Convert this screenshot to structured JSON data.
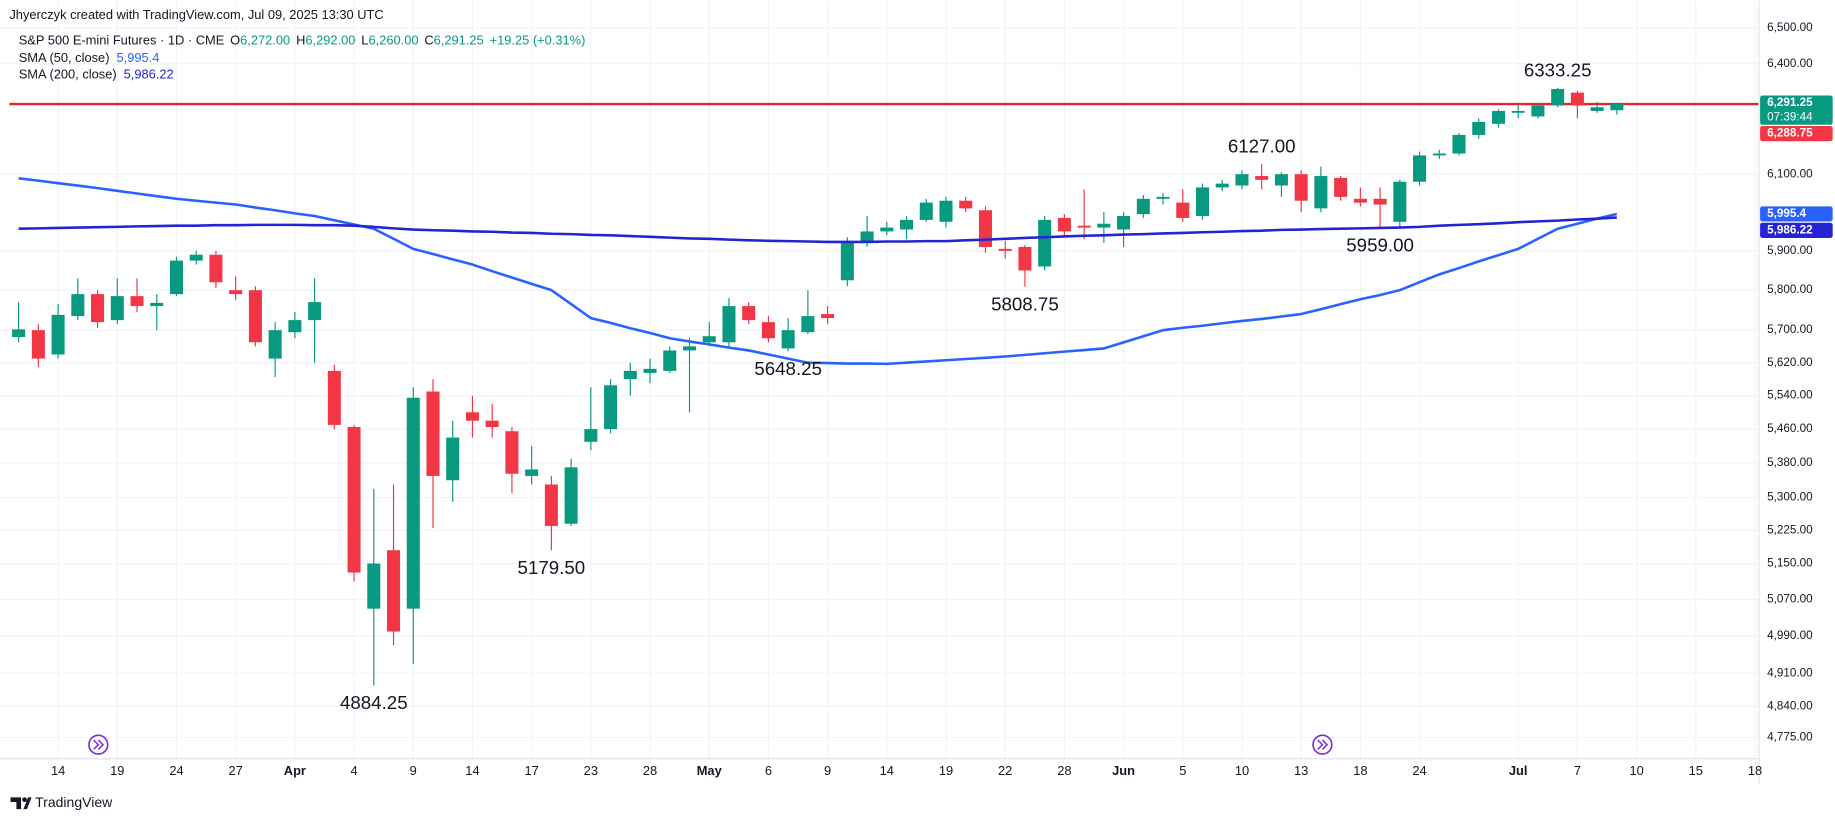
{
  "header": {
    "credit": "Jhyerczyk created with TradingView.com, Jul 09, 2025 13:30 UTC",
    "symbol": "S&P 500 E-mini Futures · 1D · CME",
    "ohlc": [
      {
        "key": "O",
        "value": "6,272.00"
      },
      {
        "key": "H",
        "value": "6,292.00"
      },
      {
        "key": "L",
        "value": "6,260.00"
      },
      {
        "key": "C",
        "value": "6,291.25"
      }
    ],
    "change": "+19.25 (+0.31%)"
  },
  "footer": {
    "brand": "TradingView"
  },
  "chart_data": {
    "type": "candlestick",
    "log_scale": true,
    "grid": true,
    "up_color": "#089981",
    "down_color": "#f23645",
    "xlim": [
      -0.47,
      88.2
    ],
    "ylim": [
      4731,
      6532
    ],
    "yticks": [
      {
        "value": 6500,
        "label": "6,500.00"
      },
      {
        "value": 6400,
        "label": "6,400.00"
      },
      {
        "value": 6100,
        "label": "6,100.00"
      },
      {
        "value": 5900,
        "label": "5,900.00"
      },
      {
        "value": 5800,
        "label": "5,800.00"
      },
      {
        "value": 5700,
        "label": "5,700.00"
      },
      {
        "value": 5620,
        "label": "5,620.00"
      },
      {
        "value": 5540,
        "label": "5,540.00"
      },
      {
        "value": 5460,
        "label": "5,460.00"
      },
      {
        "value": 5380,
        "label": "5,380.00"
      },
      {
        "value": 5300,
        "label": "5,300.00"
      },
      {
        "value": 5225,
        "label": "5,225.00"
      },
      {
        "value": 5150,
        "label": "5,150.00"
      },
      {
        "value": 5070,
        "label": "5,070.00"
      },
      {
        "value": 4990,
        "label": "4,990.00"
      },
      {
        "value": 4910,
        "label": "4,910.00"
      },
      {
        "value": 4840,
        "label": "4,840.00"
      },
      {
        "value": 4775,
        "label": "4,775.00"
      }
    ],
    "xticks": [
      {
        "value": 2,
        "label": "14"
      },
      {
        "value": 5,
        "label": "19"
      },
      {
        "value": 8,
        "label": "24"
      },
      {
        "value": 11,
        "label": "27"
      },
      {
        "value": 14,
        "label": "Apr"
      },
      {
        "value": 17,
        "label": "4"
      },
      {
        "value": 20,
        "label": "9"
      },
      {
        "value": 23,
        "label": "14"
      },
      {
        "value": 26,
        "label": "17"
      },
      {
        "value": 29,
        "label": "23"
      },
      {
        "value": 32,
        "label": "28"
      },
      {
        "value": 35,
        "label": "May"
      },
      {
        "value": 38,
        "label": "6"
      },
      {
        "value": 41,
        "label": "9"
      },
      {
        "value": 44,
        "label": "14"
      },
      {
        "value": 47,
        "label": "19"
      },
      {
        "value": 50,
        "label": "22"
      },
      {
        "value": 53,
        "label": "28"
      },
      {
        "value": 56,
        "label": "Jun"
      },
      {
        "value": 59,
        "label": "5"
      },
      {
        "value": 62,
        "label": "10"
      },
      {
        "value": 65,
        "label": "13"
      },
      {
        "value": 68,
        "label": "18"
      },
      {
        "value": 71,
        "label": "24"
      },
      {
        "value": 76,
        "label": "Jul"
      },
      {
        "value": 79,
        "label": "7"
      },
      {
        "value": 82,
        "label": "10"
      },
      {
        "value": 85,
        "label": "15"
      },
      {
        "value": 88,
        "label": "18"
      }
    ],
    "open": [
      5683,
      5700,
      5640,
      5735,
      5790,
      5725,
      5785,
      5760,
      5790,
      5875,
      5890,
      5800,
      5800,
      5630,
      5695,
      5725,
      5600,
      5465,
      5050,
      5180,
      5050,
      5550,
      5340,
      5500,
      5480,
      5455,
      5350,
      5330,
      5240,
      5430,
      5460,
      5580,
      5595,
      5600,
      5650,
      5670,
      5670,
      5760,
      5720,
      5655,
      5695,
      5740,
      5825,
      5920,
      5950,
      5955,
      5980,
      5975,
      6030,
      6005,
      5905,
      5910,
      5860,
      5985,
      5965,
      5960,
      5955,
      5995,
      6035,
      6025,
      5990,
      6065,
      6070,
      6095,
      6070,
      6100,
      6010,
      6090,
      6035,
      6035,
      5975,
      6080,
      6150,
      6155,
      6205,
      6235,
      6265,
      6255,
      6285,
      6320,
      6270,
      6272
    ],
    "high": [
      5770,
      5715,
      5765,
      5830,
      5800,
      5830,
      5830,
      5790,
      5885,
      5900,
      5900,
      5835,
      5810,
      5720,
      5745,
      5830,
      5615,
      5470,
      5320,
      5330,
      5560,
      5580,
      5480,
      5540,
      5520,
      5465,
      5420,
      5350,
      5390,
      5560,
      5580,
      5620,
      5630,
      5660,
      5680,
      5720,
      5780,
      5770,
      5735,
      5730,
      5800,
      5760,
      5935,
      5990,
      5975,
      5990,
      6035,
      6040,
      6040,
      6015,
      5925,
      5915,
      5990,
      5995,
      6060,
      6000,
      6000,
      6045,
      6050,
      6060,
      6075,
      6085,
      6110,
      6127,
      6105,
      6110,
      6120,
      6095,
      6065,
      6065,
      6085,
      6160,
      6165,
      6210,
      6250,
      6275,
      6285,
      6290,
      6333.25,
      6325,
      6295,
      6292
    ],
    "low": [
      5670,
      5610,
      5630,
      5725,
      5705,
      5715,
      5745,
      5700,
      5785,
      5865,
      5805,
      5775,
      5660,
      5585,
      5680,
      5620,
      5460,
      5110,
      4884.25,
      4970,
      4930,
      5230,
      5290,
      5440,
      5440,
      5310,
      5330,
      5179.5,
      5235,
      5410,
      5450,
      5540,
      5570,
      5595,
      5500,
      5660,
      5660,
      5715,
      5670,
      5648.25,
      5690,
      5715,
      5810,
      5910,
      5940,
      5930,
      5975,
      5960,
      6000,
      5895,
      5880,
      5808.75,
      5850,
      5940,
      5930,
      5920,
      5910,
      5985,
      6020,
      5975,
      5980,
      6055,
      6060,
      6060,
      6040,
      6000,
      6000,
      6030,
      6015,
      5959,
      5960,
      6070,
      6140,
      6150,
      6195,
      6225,
      6250,
      6250,
      6280,
      6250,
      6265,
      6260
    ],
    "close": [
      5702,
      5630,
      5738,
      5790,
      5720,
      5785,
      5760,
      5768,
      5875,
      5890,
      5820,
      5790,
      5670,
      5700,
      5725,
      5770,
      5470,
      5130,
      5150,
      5000,
      5535,
      5350,
      5440,
      5480,
      5465,
      5355,
      5365,
      5235,
      5370,
      5460,
      5565,
      5600,
      5605,
      5650,
      5660,
      5685,
      5760,
      5725,
      5680,
      5700,
      5735,
      5730,
      5920,
      5950,
      5960,
      5980,
      6025,
      6030,
      6010,
      5910,
      5900,
      5850,
      5980,
      5950,
      5960,
      5970,
      5990,
      6035,
      6040,
      5985,
      6065,
      6075,
      6100,
      6085,
      6100,
      6030,
      6095,
      6040,
      6025,
      6020,
      6080,
      6150,
      6155,
      6205,
      6240,
      6270,
      6270,
      6285,
      6330,
      6285,
      6280,
      6291.25
    ],
    "series": [
      {
        "name": "SMA (50, close)",
        "legend_value": "5,995.4",
        "color": "#2962ff",
        "values": [
          6089,
          6083,
          6076,
          6070,
          6063,
          6056,
          6049,
          6042,
          6035,
          6030,
          6025,
          6020,
          6012,
          6005,
          5997,
          5990,
          5979,
          5968,
          5957,
          5931,
          5905,
          5892,
          5878,
          5865,
          5848,
          5832,
          5816,
          5800,
          5765,
          5730,
          5718,
          5705,
          5693,
          5680,
          5672,
          5665,
          5657,
          5650,
          5640,
          5630,
          5620,
          5619,
          5618,
          5618,
          5617,
          5620,
          5623,
          5626,
          5629,
          5632,
          5635,
          5639,
          5643,
          5647,
          5651,
          5655,
          5670,
          5685,
          5700,
          5706,
          5711,
          5717,
          5723,
          5728,
          5734,
          5740,
          5752,
          5765,
          5777,
          5788,
          5800,
          5820,
          5840,
          5856,
          5873,
          5889,
          5905,
          5931,
          5957,
          5970,
          5983,
          5995.4
        ]
      },
      {
        "name": "SMA (200, close)",
        "legend_value": "5,986.22",
        "color": "#2424d4",
        "values": [
          5957,
          5958,
          5959,
          5960,
          5961,
          5962,
          5963,
          5964,
          5965,
          5965,
          5966,
          5966,
          5967,
          5967,
          5967,
          5966,
          5966,
          5965,
          5962,
          5958,
          5955,
          5953,
          5952,
          5950,
          5949,
          5947,
          5946,
          5944,
          5943,
          5941,
          5940,
          5938,
          5936,
          5934,
          5932,
          5931,
          5929,
          5927,
          5926,
          5925,
          5924,
          5923,
          5923,
          5923,
          5924,
          5924,
          5925,
          5925,
          5927,
          5929,
          5931,
          5933,
          5935,
          5937,
          5939,
          5940,
          5942,
          5943,
          5945,
          5946,
          5948,
          5949,
          5951,
          5952,
          5954,
          5955,
          5956,
          5957,
          5958,
          5959,
          5960,
          5962,
          5965,
          5967,
          5969,
          5971,
          5974,
          5976,
          5978,
          5981,
          5983,
          5986.22
        ]
      }
    ],
    "hline": {
      "value": 6288.75,
      "color": "#e3242f"
    },
    "price_labels": [
      {
        "value": 6291.25,
        "label": "6,291.25",
        "sub": "07:39:44",
        "color": "#089981"
      },
      {
        "value": 6288.75,
        "label": "6,288.75",
        "color": "#f23645"
      },
      {
        "value": 5995.4,
        "label": "5,995.4",
        "color": "#2962ff"
      },
      {
        "value": 5986.22,
        "label": "5,986.22",
        "color": "#2424d4"
      }
    ],
    "annotations": [
      {
        "text": "6333.25",
        "candle": 78,
        "side": "high"
      },
      {
        "text": "6127.00",
        "candle": 63,
        "side": "high"
      },
      {
        "text": "5959.00",
        "candle": 69,
        "side": "low"
      },
      {
        "text": "5808.75",
        "candle": 51,
        "side": "low"
      },
      {
        "text": "5648.25",
        "candle": 39,
        "side": "low"
      },
      {
        "text": "5179.50",
        "candle": 27,
        "side": "low"
      },
      {
        "text": "4884.25",
        "candle": 18,
        "side": "low"
      }
    ]
  }
}
